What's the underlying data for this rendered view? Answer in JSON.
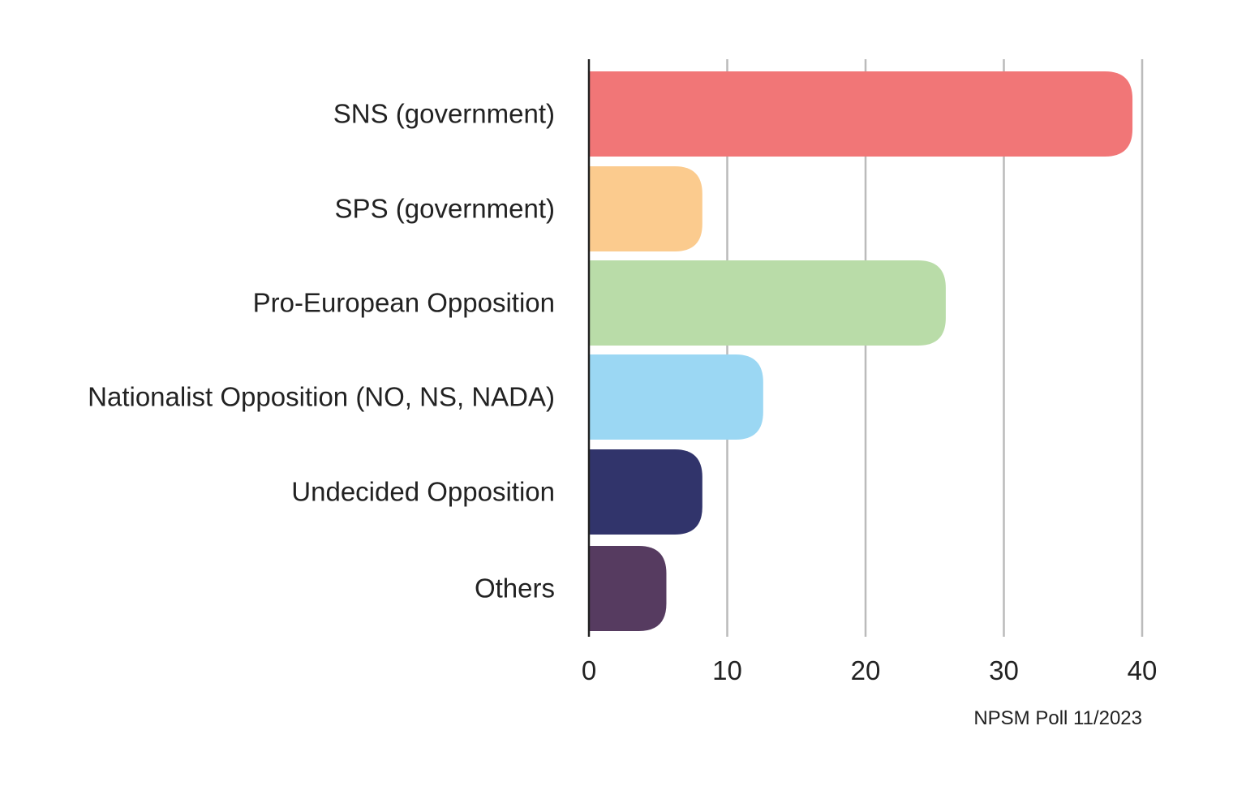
{
  "chart_data": {
    "type": "bar",
    "orientation": "horizontal",
    "categories": [
      "SNS (government)",
      "SPS (government)",
      "Pro-European Opposition",
      "Nationalist Opposition (NO, NS, NADA)",
      "Undecided Opposition",
      "Others"
    ],
    "values": [
      39.3,
      8.2,
      25.8,
      12.6,
      8.2,
      5.6
    ],
    "bar_colors": [
      "#F17677",
      "#FBCB8E",
      "#B9DCA8",
      "#9BD7F3",
      "#31346B",
      "#563B60"
    ],
    "xlim": [
      0,
      40
    ],
    "xticks": [
      "0",
      "10",
      "20",
      "30",
      "40"
    ],
    "grid": "vertical",
    "grid_color": "#BBBBBB",
    "axis_color": "#222222",
    "legend": "none",
    "title": "",
    "xlabel": "",
    "ylabel": "",
    "source": "NPSM Poll 11/2023"
  }
}
